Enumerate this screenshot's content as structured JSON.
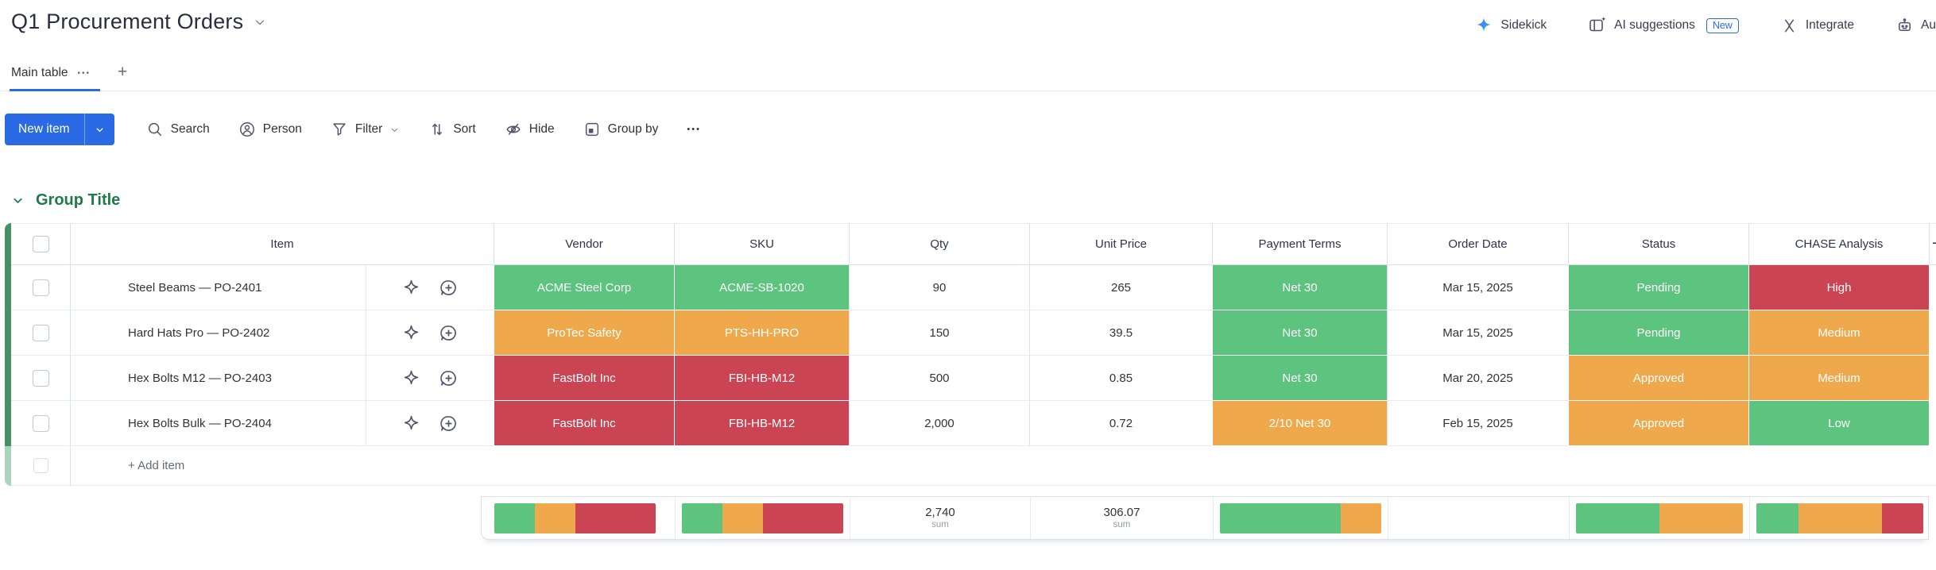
{
  "colors": {
    "blue": "#2a6ae4",
    "chip_green": "#5cc47e",
    "chip_orange": "#efa94c",
    "chip_red": "#cb4453",
    "group_green": "#1e7a46",
    "bar_green": "#459163",
    "bar_green_light": "#aad4bd"
  },
  "board": {
    "title": "Q1 Procurement Orders"
  },
  "top_actions": {
    "sidekick": "Sidekick",
    "ai_suggestions": "AI suggestions",
    "ai_badge": "New",
    "integrate": "Integrate",
    "automate_partial": "Au"
  },
  "tabs": {
    "main": "Main table",
    "more": "•••",
    "add": "+"
  },
  "toolbar": {
    "new_item": "New item",
    "search": "Search",
    "person": "Person",
    "filter": "Filter",
    "sort": "Sort",
    "hide": "Hide",
    "group_by": "Group by",
    "more": "•••"
  },
  "group": {
    "title": "Group Title",
    "columns": {
      "item": "Item",
      "vendor": "Vendor",
      "sku": "SKU",
      "qty": "Qty",
      "unit_price": "Unit Price",
      "payment_terms": "Payment Terms",
      "order_date": "Order Date",
      "status": "Status",
      "chase": "CHASE Analysis",
      "add_column": "+"
    },
    "rows": [
      {
        "item": "Steel Beams — PO-2401",
        "vendor": {
          "text": "ACME Steel Corp",
          "color": "green"
        },
        "sku": {
          "text": "ACME-SB-1020",
          "color": "green"
        },
        "qty": "90",
        "unit_price": "265",
        "payment_terms": {
          "text": "Net 30",
          "color": "green"
        },
        "order_date": "Mar 15, 2025",
        "status": {
          "text": "Pending",
          "color": "green"
        },
        "chase": {
          "text": "High",
          "color": "red"
        }
      },
      {
        "item": "Hard Hats Pro — PO-2402",
        "vendor": {
          "text": "ProTec Safety",
          "color": "orange"
        },
        "sku": {
          "text": "PTS-HH-PRO",
          "color": "orange"
        },
        "qty": "150",
        "unit_price": "39.5",
        "payment_terms": {
          "text": "Net 30",
          "color": "green"
        },
        "order_date": "Mar 15, 2025",
        "status": {
          "text": "Pending",
          "color": "green"
        },
        "chase": {
          "text": "Medium",
          "color": "orange"
        }
      },
      {
        "item": "Hex Bolts M12 — PO-2403",
        "vendor": {
          "text": "FastBolt Inc",
          "color": "red"
        },
        "sku": {
          "text": "FBI-HB-M12",
          "color": "red"
        },
        "qty": "500",
        "unit_price": "0.85",
        "payment_terms": {
          "text": "Net 30",
          "color": "green"
        },
        "order_date": "Mar 20, 2025",
        "status": {
          "text": "Approved",
          "color": "orange"
        },
        "chase": {
          "text": "Medium",
          "color": "orange"
        }
      },
      {
        "item": "Hex Bolts Bulk — PO-2404",
        "vendor": {
          "text": "FastBolt Inc",
          "color": "red"
        },
        "sku": {
          "text": "FBI-HB-M12",
          "color": "red"
        },
        "qty": "2,000",
        "unit_price": "0.72",
        "payment_terms": {
          "text": "2/10 Net 30",
          "color": "orange"
        },
        "order_date": "Feb 15, 2025",
        "status": {
          "text": "Approved",
          "color": "orange"
        },
        "chase": {
          "text": "Low",
          "color": "green"
        }
      }
    ],
    "add_item": "+ Add item",
    "summary": {
      "vendor_bar": [
        {
          "color": "green",
          "pct": 25
        },
        {
          "color": "orange",
          "pct": 25
        },
        {
          "color": "red",
          "pct": 50
        }
      ],
      "sku_bar": [
        {
          "color": "green",
          "pct": 25
        },
        {
          "color": "orange",
          "pct": 25
        },
        {
          "color": "red",
          "pct": 50
        }
      ],
      "qty": {
        "value": "2,740",
        "label": "sum"
      },
      "unit_price": {
        "value": "306.07",
        "label": "sum"
      },
      "payment_bar": [
        {
          "color": "green",
          "pct": 75
        },
        {
          "color": "orange",
          "pct": 25
        }
      ],
      "status_bar": [
        {
          "color": "green",
          "pct": 50
        },
        {
          "color": "orange",
          "pct": 50
        }
      ],
      "chase_bar": [
        {
          "color": "green",
          "pct": 25
        },
        {
          "color": "orange",
          "pct": 50
        },
        {
          "color": "red",
          "pct": 25
        }
      ]
    }
  }
}
